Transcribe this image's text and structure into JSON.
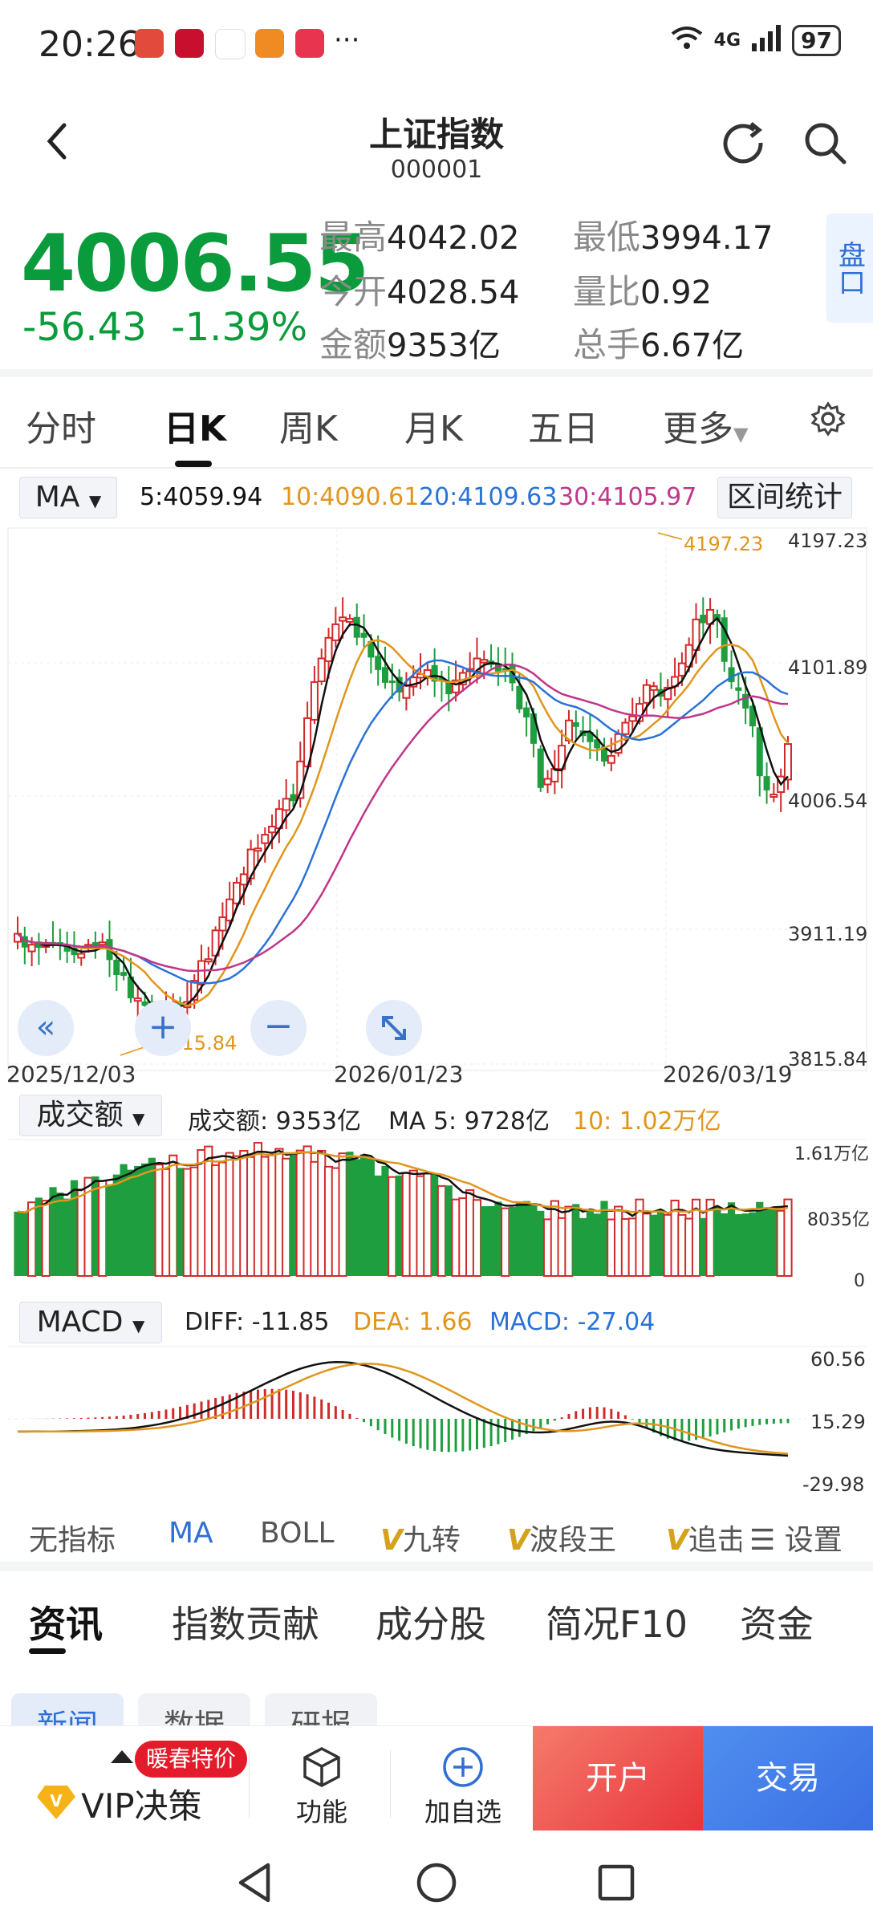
{
  "status": {
    "time": "20:26",
    "more": "···",
    "network": "4G",
    "battery": "97"
  },
  "header": {
    "title": "上证指数",
    "code": "000001"
  },
  "quote": {
    "price": "4006.55",
    "change": "-56.43",
    "change_pct": "-1.39%",
    "high_label": "最高",
    "high": "4042.02",
    "low_label": "最低",
    "low": "3994.17",
    "open_label": "今开",
    "open": "4028.54",
    "ratio_label": "量比",
    "ratio": "0.92",
    "amount_label": "金额",
    "amount": "9353亿",
    "vol_label": "总手",
    "vol": "6.67亿",
    "pankou": "盘口"
  },
  "tabs": [
    "分时",
    "日K",
    "周K",
    "月K",
    "五日",
    "更多"
  ],
  "ma_legend": {
    "selector": "MA",
    "ma5": "5:4059.94",
    "ma10": "10:4090.61",
    "ma20": "20:4109.63",
    "ma30": "30:4105.97",
    "range_stats": "区间统计"
  },
  "colors": {
    "up": "#d12a2a",
    "down": "#1e9e3e",
    "ma5": "#111111",
    "ma10": "#e0961c",
    "ma20": "#2a72d6",
    "ma30": "#c0368a",
    "green_text": "#0a9b3c",
    "accent_blue": "#2f6fd6"
  },
  "kline": {
    "y_labels": [
      "4197.23",
      "4101.89",
      "4006.54",
      "3911.19",
      "3815.84"
    ],
    "x_labels": [
      "2025/12/03",
      "2026/01/23",
      "2026/03/19"
    ],
    "max_mark": "4197.23",
    "min_mark": "3815.84"
  },
  "volume": {
    "selector": "成交额",
    "amount": "成交额: 9353亿",
    "ma5": "MA 5: 9728亿",
    "ma10": "10: 1.02万亿",
    "y_labels": [
      "1.61万亿",
      "8035亿",
      "0"
    ]
  },
  "macd": {
    "selector": "MACD",
    "diff": "DIFF: -11.85",
    "dea": "DEA: 1.66",
    "macd": "MACD: -27.04",
    "y_labels": [
      "60.56",
      "15.29",
      "-29.98"
    ]
  },
  "indicators": [
    "无指标",
    "MA",
    "BOLL",
    "九转",
    "波段王",
    "追击"
  ],
  "indicator_settings": "设置",
  "news_tabs": [
    "资讯",
    "指数贡献",
    "成分股",
    "简况F10",
    "资金"
  ],
  "sub_chips": [
    "新闻",
    "数据",
    "研报"
  ],
  "bottom": {
    "promo": "暖春特价",
    "vip": "VIP决策",
    "func": "功能",
    "add": "加自选",
    "open_account": "开户",
    "trade": "交易"
  }
}
